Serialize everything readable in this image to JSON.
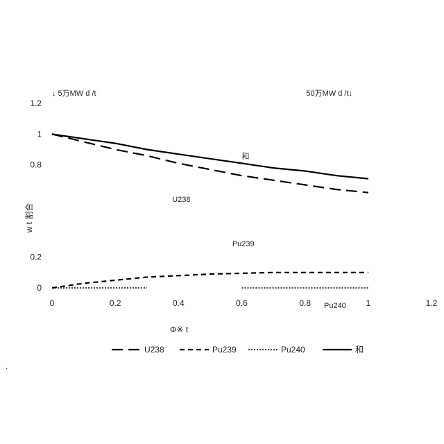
{
  "chart_data": {
    "type": "line",
    "title": "",
    "xlabel": "Φ※ t",
    "ylabel": "w t 割合",
    "xlim": [
      0,
      1.2
    ],
    "ylim": [
      0,
      1.2
    ],
    "x_ticks": [
      "0",
      "0.2",
      "0.4",
      "0.6",
      "0.8",
      "1",
      "1.2"
    ],
    "y_ticks": [
      "0",
      "0.2",
      "0.8",
      "1",
      "1.2"
    ],
    "grid": false,
    "legend_position": "bottom",
    "series": [
      {
        "name": "U238",
        "style": "long-dash",
        "x": [
          0,
          0.1,
          0.2,
          0.3,
          0.4,
          0.5,
          0.6,
          0.7,
          0.8,
          0.9,
          1.0
        ],
        "y": [
          1.0,
          0.95,
          0.9,
          0.86,
          0.81,
          0.77,
          0.73,
          0.7,
          0.67,
          0.64,
          0.62
        ]
      },
      {
        "name": "Pu239",
        "style": "short-dash",
        "x": [
          0,
          0.1,
          0.2,
          0.3,
          0.4,
          0.5,
          0.6,
          0.7,
          0.8,
          0.9,
          1.0
        ],
        "y": [
          0,
          0.03,
          0.05,
          0.07,
          0.08,
          0.09,
          0.095,
          0.1,
          0.1,
          0.1,
          0.1
        ]
      },
      {
        "name": "Pu240",
        "style": "dotted",
        "segments": [
          {
            "x": [
              0,
              0.3
            ],
            "y": [
              0,
              0
            ]
          },
          {
            "x": [
              0.6,
              1.0
            ],
            "y": [
              0,
              0
            ]
          }
        ]
      },
      {
        "name": "和",
        "style": "solid",
        "x": [
          0,
          0.1,
          0.2,
          0.3,
          0.4,
          0.5,
          0.6,
          0.7,
          0.8,
          0.9,
          1.0
        ],
        "y": [
          1.0,
          0.97,
          0.94,
          0.9,
          0.87,
          0.84,
          0.81,
          0.78,
          0.76,
          0.73,
          0.71
        ]
      }
    ],
    "annotations": [
      {
        "text": "↓ 5万MW d /t",
        "x": 0.0,
        "y": 1.25
      },
      {
        "text": "50万MW d /t↓",
        "x": 0.95,
        "y": 1.25
      },
      {
        "text": "和",
        "x": 0.6,
        "y": 0.84
      },
      {
        "text": "U238",
        "x": 0.38,
        "y": 0.56
      },
      {
        "text": "Pu239",
        "x": 0.57,
        "y": 0.27
      },
      {
        "text": "Pu240",
        "x": 0.86,
        "y": -0.13
      }
    ],
    "legend_entries": [
      "U238",
      "Pu239",
      "Pu240",
      "和"
    ]
  },
  "stray_mark": "."
}
